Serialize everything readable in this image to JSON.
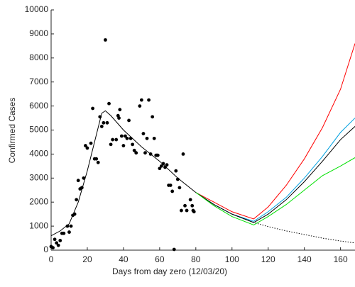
{
  "chart_data": {
    "type": "line",
    "xlabel": "Days from day zero (12/03/20)",
    "ylabel": "Confirmed Cases",
    "xlim": [
      0,
      168
    ],
    "xticks": [
      0,
      20,
      40,
      60,
      80,
      100,
      120,
      140,
      160
    ],
    "ylim": [
      0,
      10000
    ],
    "yticks": [
      0,
      1000,
      2000,
      3000,
      4000,
      5000,
      6000,
      7000,
      8000,
      9000,
      10000
    ],
    "series": [
      {
        "type": "scatter",
        "color": "#000000",
        "x": [
          0,
          1,
          2,
          3,
          4,
          5,
          6,
          7,
          9,
          10,
          11,
          12,
          13,
          14,
          15,
          16,
          17,
          18,
          19,
          20,
          22,
          23,
          24,
          25,
          26,
          27,
          28,
          29,
          30,
          31,
          32,
          33,
          34,
          36,
          37,
          37.5,
          38,
          39,
          40,
          41,
          42,
          43,
          44,
          45,
          46,
          47,
          49,
          50,
          51,
          52,
          53,
          54,
          55,
          56,
          57,
          58,
          58.5,
          59,
          60,
          61,
          62,
          63,
          64,
          65,
          66,
          67,
          68,
          69,
          70,
          71,
          72,
          73,
          74,
          75,
          77,
          78,
          78.5,
          79
        ],
        "values": [
          150,
          100,
          450,
          300,
          200,
          400,
          700,
          700,
          1000,
          750,
          1000,
          1450,
          1500,
          2100,
          2900,
          2550,
          2600,
          3000,
          4350,
          4250,
          4450,
          5900,
          3800,
          3800,
          3650,
          5550,
          5150,
          5300,
          8750,
          5300,
          6100,
          4400,
          4600,
          4600,
          5600,
          5500,
          5850,
          4750,
          4350,
          4750,
          4650,
          5400,
          4650,
          4400,
          4150,
          4050,
          6000,
          6250,
          4850,
          4050,
          4650,
          6250,
          4000,
          5550,
          4650,
          3950,
          3950,
          3950,
          3400,
          3500,
          3600,
          3450,
          3550,
          2700,
          2700,
          2450,
          30,
          3300,
          2950,
          2600,
          1650,
          4000,
          1850,
          1650,
          2100,
          1850,
          1650,
          1600
        ]
      },
      {
        "type": "line",
        "color": "#000000",
        "x": [
          0,
          5,
          10,
          15,
          20,
          25,
          28,
          30,
          33,
          40,
          50,
          60,
          70,
          80
        ],
        "values": [
          600,
          800,
          1100,
          2000,
          3300,
          4800,
          5700,
          5800,
          5600,
          5000,
          4300,
          3700,
          3000,
          2400
        ]
      },
      {
        "type": "line",
        "color": "#000000",
        "style": "dotted",
        "x": [
          80,
          90,
          100,
          112,
          120,
          130,
          140,
          150,
          160,
          168
        ],
        "values": [
          2400,
          1900,
          1500,
          1150,
          980,
          800,
          650,
          500,
          380,
          300
        ]
      },
      {
        "type": "line",
        "color": "#ff0000",
        "x": [
          80,
          90,
          100,
          112,
          120,
          130,
          140,
          150,
          160,
          168
        ],
        "values": [
          2400,
          2000,
          1600,
          1300,
          1800,
          2700,
          3800,
          5100,
          6700,
          8600
        ]
      },
      {
        "type": "line",
        "color": "#00a0e0",
        "x": [
          80,
          90,
          100,
          112,
          120,
          130,
          140,
          150,
          160,
          168
        ],
        "values": [
          2400,
          1900,
          1500,
          1200,
          1600,
          2200,
          3000,
          3900,
          4900,
          5500
        ]
      },
      {
        "type": "line",
        "color": "#000000",
        "x": [
          80,
          90,
          100,
          112,
          120,
          130,
          140,
          150,
          160,
          168
        ],
        "values": [
          2400,
          1900,
          1500,
          1150,
          1500,
          2100,
          2850,
          3700,
          4600,
          5150
        ]
      },
      {
        "type": "line",
        "color": "#00e000",
        "x": [
          80,
          90,
          100,
          112,
          120,
          130,
          140,
          150,
          160,
          168
        ],
        "values": [
          2400,
          1850,
          1400,
          1050,
          1400,
          1900,
          2500,
          3100,
          3500,
          3850
        ]
      }
    ]
  }
}
